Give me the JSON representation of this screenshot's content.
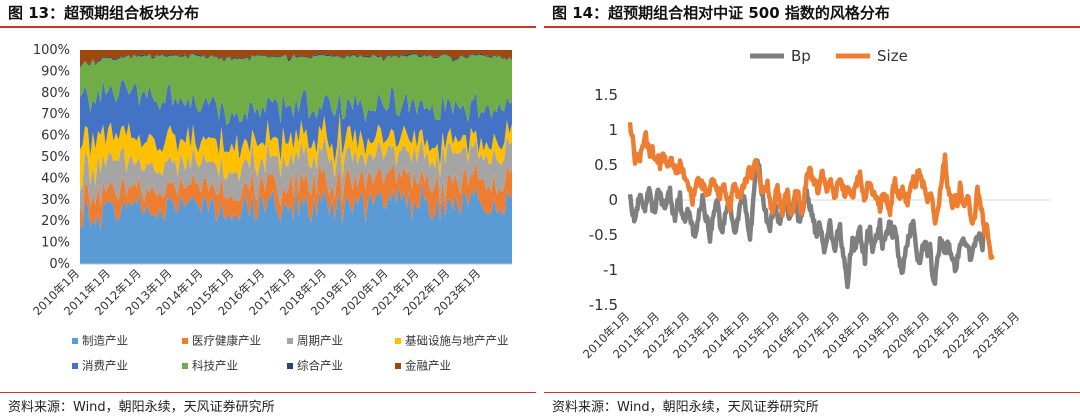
{
  "figures": [
    {
      "title": "图 13：超预期组合板块分布",
      "source": "资料来源：Wind，朝阳永续，天风证券研究所"
    },
    {
      "title": "图 14：超预期组合相对中证 500 指数的风格分布",
      "source": "资料来源：Wind，朝阳永续，天风证券研究所"
    }
  ],
  "chart_data": [
    {
      "type": "area",
      "stacked": true,
      "normalized": true,
      "title": "图 13：超预期组合板块分布",
      "x_ticks": [
        "2010年1月",
        "2011年1月",
        "2012年1月",
        "2013年1月",
        "2014年1月",
        "2015年1月",
        "2016年1月",
        "2017年1月",
        "2018年1月",
        "2019年1月",
        "2020年1月",
        "2021年1月",
        "2022年1月",
        "2023年1月"
      ],
      "y_ticks": [
        "0%",
        "10%",
        "20%",
        "30%",
        "40%",
        "50%",
        "60%",
        "70%",
        "80%",
        "90%",
        "100%"
      ],
      "ylim": [
        0,
        1
      ],
      "legend_position": "bottom",
      "points_per_year": 12,
      "series": [
        {
          "name": "制造产业",
          "color": "#5b9bd5",
          "mean": [
            0.22,
            0.24,
            0.26,
            0.28,
            0.27,
            0.24,
            0.28,
            0.3,
            0.28,
            0.27,
            0.29,
            0.3,
            0.28,
            0.28,
            0.27
          ]
        },
        {
          "name": "医疗健康产业",
          "color": "#ed7d31",
          "mean": [
            0.08,
            0.09,
            0.08,
            0.08,
            0.09,
            0.09,
            0.09,
            0.1,
            0.11,
            0.11,
            0.12,
            0.11,
            0.1,
            0.11,
            0.11
          ]
        },
        {
          "name": "周期产业",
          "color": "#a5a5a5",
          "mean": [
            0.12,
            0.14,
            0.13,
            0.11,
            0.1,
            0.1,
            0.12,
            0.12,
            0.12,
            0.11,
            0.1,
            0.12,
            0.15,
            0.13,
            0.12
          ]
        },
        {
          "name": "基础设施与地产产业",
          "color": "#ffc000",
          "mean": [
            0.16,
            0.14,
            0.12,
            0.12,
            0.12,
            0.12,
            0.1,
            0.09,
            0.08,
            0.08,
            0.07,
            0.06,
            0.06,
            0.06,
            0.06
          ]
        },
        {
          "name": "消费产业",
          "color": "#4472c4",
          "mean": [
            0.18,
            0.19,
            0.2,
            0.18,
            0.15,
            0.15,
            0.15,
            0.15,
            0.15,
            0.16,
            0.17,
            0.17,
            0.15,
            0.15,
            0.15
          ]
        },
        {
          "name": "科技产业",
          "color": "#70ad47",
          "mean": [
            0.16,
            0.16,
            0.18,
            0.2,
            0.24,
            0.26,
            0.23,
            0.21,
            0.23,
            0.24,
            0.22,
            0.22,
            0.23,
            0.24,
            0.26
          ]
        },
        {
          "name": "综合产业",
          "color": "#264478",
          "mean": [
            0.005,
            0.005,
            0.005,
            0.005,
            0.005,
            0.005,
            0.005,
            0.005,
            0.005,
            0.005,
            0.005,
            0.005,
            0.005,
            0.005,
            0.005
          ]
        },
        {
          "name": "金融产业",
          "color": "#9e480e",
          "mean": [
            0.055,
            0.035,
            0.025,
            0.025,
            0.025,
            0.035,
            0.025,
            0.025,
            0.025,
            0.025,
            0.025,
            0.02,
            0.03,
            0.025,
            0.035
          ]
        }
      ]
    },
    {
      "type": "line",
      "title": "图 14：超预期组合相对中证 500 指数的风格分布",
      "x_ticks": [
        "2010年1月",
        "2011年1月",
        "2012年1月",
        "2013年1月",
        "2014年1月",
        "2015年1月",
        "2016年1月",
        "2017年1月",
        "2018年1月",
        "2019年1月",
        "2020年1月",
        "2021年1月",
        "2022年1月",
        "2023年1月"
      ],
      "y_ticks": [
        "-1.5",
        "-1",
        "-0.5",
        "0",
        "0.5",
        "1",
        "1.5"
      ],
      "ylim": [
        -1.5,
        1.5
      ],
      "grid": false,
      "legend_position": "top",
      "points_per_year": 12,
      "series": [
        {
          "name": "Bp",
          "color": "#7f7f7f",
          "values": [
            0.15,
            -0.2,
            -0.28,
            -0.1,
            0.05,
            -0.05,
            -0.22,
            0.08,
            0.12,
            -0.1,
            -0.15,
            0.08,
            0.1,
            -0.05,
            -0.12,
            0.05,
            0.12,
            -0.15,
            -0.25,
            0.0,
            0.05,
            -0.25,
            -0.35,
            -0.1,
            -0.2,
            -0.4,
            -0.55,
            -0.3,
            -0.15,
            0.05,
            -0.2,
            -0.3,
            -0.55,
            -0.3,
            -0.1,
            0.05,
            -0.35,
            -0.45,
            -0.2,
            -0.05,
            0.0,
            -0.35,
            -0.5,
            -0.3,
            -0.1,
            0.1,
            0.0,
            -0.3,
            -0.5,
            -0.2,
            0.3,
            0.6,
            0.35,
            0.05,
            -0.15,
            -0.3,
            -0.4,
            -0.2,
            -0.05,
            -0.3,
            -0.35,
            -0.1,
            0.0,
            -0.15,
            -0.25,
            -0.05,
            0.05,
            -0.2,
            -0.3,
            -0.2,
            0.05,
            0.1,
            -0.1,
            -0.25,
            -0.4,
            -0.55,
            -0.3,
            -0.6,
            -0.75,
            -0.5,
            -0.35,
            -0.6,
            -0.7,
            -0.5,
            -0.4,
            -0.7,
            -0.95,
            -1.3,
            -0.8,
            -0.6,
            -0.7,
            -0.55,
            -0.4,
            -0.7,
            -0.85,
            -0.5,
            -0.45,
            -0.75,
            -0.6,
            -0.5,
            -0.35,
            -0.65,
            -0.55,
            -0.45,
            -0.3,
            -0.5,
            -0.35,
            -0.7,
            -0.9,
            -1.1,
            -0.75,
            -0.6,
            -0.45,
            -0.3,
            -0.5,
            -0.8,
            -0.95,
            -0.7,
            -0.6,
            -0.75,
            -0.6,
            -1.1,
            -1.15,
            -0.85,
            -0.6,
            -0.65,
            -0.75,
            -0.6,
            -0.7,
            -0.8,
            -1.0,
            -0.85,
            -0.7,
            -0.6,
            -0.55,
            -0.7,
            -0.8,
            -0.75,
            -0.65,
            -0.55,
            -0.5,
            -0.65,
            -0.4,
            -0.35
          ]
        },
        {
          "name": "Size",
          "color": "#ed7d31",
          "values": [
            1.05,
            0.9,
            0.55,
            0.65,
            0.6,
            0.75,
            0.95,
            0.8,
            0.65,
            0.7,
            0.55,
            0.6,
            0.5,
            0.65,
            0.55,
            0.45,
            0.6,
            0.55,
            0.5,
            0.35,
            0.55,
            0.45,
            0.35,
            0.3,
            0.15,
            -0.05,
            0.2,
            0.35,
            0.25,
            0.2,
            0.15,
            0.05,
            0.2,
            0.3,
            0.25,
            0.15,
            0.05,
            0.2,
            0.15,
            0.0,
            -0.1,
            0.15,
            0.25,
            0.1,
            0.05,
            0.2,
            0.25,
            0.35,
            0.45,
            0.3,
            0.55,
            0.5,
            0.3,
            0.1,
            0.2,
            0.25,
            -0.05,
            -0.15,
            0.05,
            0.15,
            -0.05,
            -0.2,
            0.0,
            0.1,
            -0.15,
            -0.25,
            0.1,
            0.15,
            -0.1,
            -0.2,
            0.2,
            0.35,
            0.45,
            0.3,
            0.25,
            0.1,
            0.3,
            0.4,
            0.2,
            0.15,
            0.3,
            0.2,
            0.05,
            0.25,
            0.35,
            0.2,
            0.05,
            0.2,
            0.15,
            0.0,
            0.2,
            0.3,
            0.35,
            0.15,
            0.0,
            0.25,
            0.2,
            0.05,
            0.1,
            0.0,
            -0.1,
            0.05,
            0.1,
            -0.05,
            -0.15,
            0.1,
            0.25,
            0.1,
            0.05,
            0.15,
            0.05,
            -0.05,
            0.1,
            0.3,
            0.2,
            0.35,
            0.4,
            0.25,
            0.1,
            -0.05,
            0.15,
            -0.05,
            -0.3,
            -0.2,
            0.1,
            0.35,
            0.6,
            0.2,
            0.1,
            -0.1,
            0.05,
            -0.05,
            0.2,
            0.0,
            -0.1,
            0.05,
            -0.15,
            -0.35,
            -0.2,
            0.15,
            0.0,
            -0.2,
            -0.45,
            -0.4,
            -0.75,
            -0.85
          ]
        }
      ]
    }
  ]
}
